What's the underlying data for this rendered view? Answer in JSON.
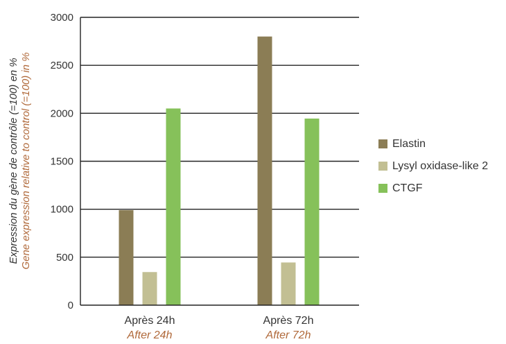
{
  "chart_data": {
    "type": "bar",
    "categories": [
      "Après 24h",
      "Après 72h"
    ],
    "categories_secondary": [
      "After 24h",
      "After 72h"
    ],
    "series": [
      {
        "name": "Elastin",
        "values": [
          990,
          2800
        ],
        "color": "#8b7d55"
      },
      {
        "name": "Lysyl oxidase-like 2",
        "values": [
          345,
          445
        ],
        "color": "#c2bf93"
      },
      {
        "name": "CTGF",
        "values": [
          2050,
          1945
        ],
        "color": "#86c15a"
      }
    ],
    "ylabel": "Expression du gène de contrôle (=100) en %",
    "ylabel_secondary": "Gene expression relative to control (=100) in %",
    "ylim": [
      0,
      3000
    ],
    "yticks": [
      0,
      500,
      1000,
      1500,
      2000,
      2500,
      3000
    ],
    "grid": true,
    "legend_position": "right"
  }
}
